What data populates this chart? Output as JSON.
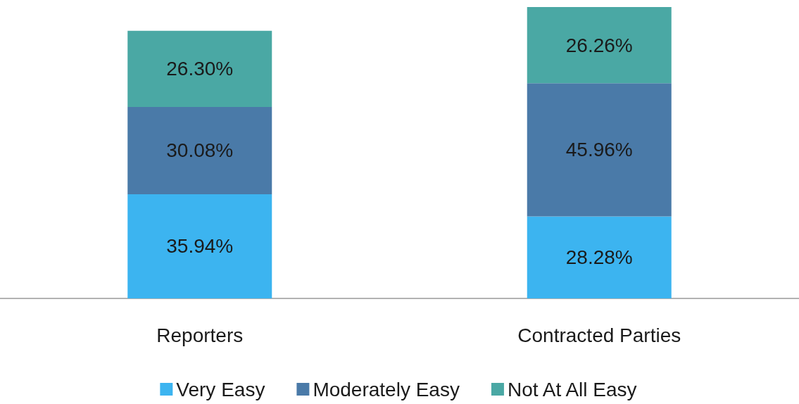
{
  "chart_data": {
    "type": "bar",
    "stacked": true,
    "categories": [
      "Reporters",
      "Contracted Parties"
    ],
    "series": [
      {
        "name": "Very Easy",
        "color": "#3cb4f0",
        "values": [
          35.94,
          28.28
        ],
        "value_labels": [
          "35.94%",
          "28.28%"
        ]
      },
      {
        "name": "Moderately Easy",
        "color": "#4a7aa8",
        "values": [
          30.08,
          45.96
        ],
        "value_labels": [
          "30.08%",
          "45.96%"
        ]
      },
      {
        "name": "Not At All Easy",
        "color": "#4aa8a4",
        "values": [
          26.3,
          26.26
        ],
        "value_labels": [
          "26.30%",
          "26.26%"
        ]
      }
    ],
    "legend": "bottom",
    "grid": false
  }
}
